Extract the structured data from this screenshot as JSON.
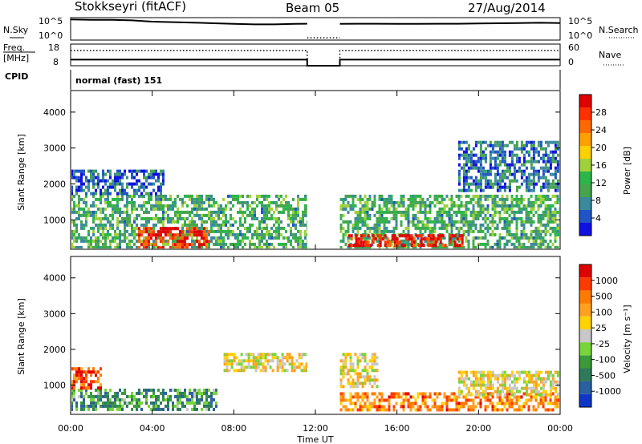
{
  "header": {
    "station": "Stokkseyri (fitACF)",
    "beam": "Beam 05",
    "date": "27/Aug/2014",
    "mode": "normal (fast) 151"
  },
  "left_labels": {
    "nsky": "N.Sky",
    "freq": "Freq.",
    "freq_unit": "[MHz]",
    "cpid": "CPID"
  },
  "right_labels": {
    "nsearch": "N.Search",
    "nave": "Nave"
  },
  "chart_data": [
    {
      "id": "noise",
      "type": "line",
      "left_axis": {
        "label": "N.Sky",
        "tick_labels": [
          "10^5",
          "10^0"
        ]
      },
      "right_axis": {
        "label": "N.Search",
        "tick_labels": [
          "10^5",
          "10^0"
        ]
      },
      "x": {
        "unit": "hours UT",
        "range": [
          0,
          24
        ]
      },
      "series": [
        {
          "name": "N.Sky",
          "style": "solid",
          "points": [
            [
              0,
              0.92
            ],
            [
              1,
              0.9
            ],
            [
              2,
              0.9
            ],
            [
              3,
              0.88
            ],
            [
              4,
              0.82
            ],
            [
              5,
              0.8
            ],
            [
              6,
              0.78
            ],
            [
              7,
              0.75
            ],
            [
              8,
              0.72
            ],
            [
              9,
              0.7
            ],
            [
              10,
              0.7
            ],
            [
              11,
              0.72
            ],
            [
              11.6,
              0.73
            ]
          ]
        },
        {
          "name": "N.Sky",
          "style": "solid",
          "points": [
            [
              13.2,
              0.72
            ],
            [
              14,
              0.73
            ],
            [
              15,
              0.73
            ],
            [
              16,
              0.72
            ],
            [
              17,
              0.72
            ],
            [
              18,
              0.73
            ],
            [
              19,
              0.73
            ],
            [
              20,
              0.74
            ],
            [
              21,
              0.75
            ],
            [
              22,
              0.76
            ],
            [
              23,
              0.77
            ],
            [
              24,
              0.76
            ]
          ]
        },
        {
          "name": "N.Search",
          "style": "dotted",
          "points": [
            [
              11.6,
              0.1
            ],
            [
              13.2,
              0.1
            ]
          ]
        }
      ]
    },
    {
      "id": "freq_nave",
      "type": "line",
      "left_axis": {
        "label": "Freq. [MHz]",
        "ticks": [
          8,
          18
        ],
        "range": [
          8,
          18
        ]
      },
      "right_axis": {
        "label": "Nave",
        "ticks": [
          0,
          60
        ],
        "range": [
          0,
          60
        ]
      },
      "x": {
        "unit": "hours UT",
        "range": [
          0,
          24
        ]
      },
      "series": [
        {
          "name": "Freq",
          "style": "solid",
          "points": [
            [
              0,
              10.8
            ],
            [
              11.6,
              10.8
            ],
            [
              11.6,
              8
            ],
            [
              13.2,
              8
            ],
            [
              13.2,
              10.8
            ],
            [
              24,
              10.8
            ]
          ]
        },
        {
          "name": "Nave",
          "style": "dotted",
          "points": [
            [
              0,
              42
            ],
            [
              11.6,
              42
            ],
            [
              11.6,
              0
            ],
            [
              13.2,
              0
            ],
            [
              13.2,
              42
            ],
            [
              24,
              42
            ]
          ]
        }
      ]
    },
    {
      "id": "power",
      "type": "heatmap",
      "ylabel": "Slant Range [km]",
      "yticks": [
        1000,
        2000,
        3000,
        4000
      ],
      "ylim": [
        180,
        4600
      ],
      "xlim": [
        0,
        24
      ],
      "colorbar": {
        "label": "Power [dB]",
        "ticks": [
          4,
          8,
          12,
          16,
          20,
          24,
          28
        ],
        "colors": [
          "#1010e0",
          "#1f55c6",
          "#3b8a9c",
          "#46a44d",
          "#2cb64a",
          "#9fd13b",
          "#ffd000",
          "#ffa000",
          "#ff6a00",
          "#ff3000",
          "#e00000"
        ]
      },
      "data_gap_hours": [
        11.6,
        13.2
      ],
      "regions": [
        {
          "x": [
            0,
            11.6
          ],
          "y": [
            250,
            1700
          ],
          "level": 0.35
        },
        {
          "x": [
            3.3,
            6.8
          ],
          "y": [
            250,
            800
          ],
          "level": 0.9
        },
        {
          "x": [
            0,
            4.5
          ],
          "y": [
            1700,
            2400
          ],
          "level": 0.15
        },
        {
          "x": [
            13.2,
            24
          ],
          "y": [
            250,
            1700
          ],
          "level": 0.35
        },
        {
          "x": [
            13.6,
            19.2
          ],
          "y": [
            250,
            600
          ],
          "level": 0.95
        },
        {
          "x": [
            19,
            24
          ],
          "y": [
            1800,
            3200
          ],
          "level": 0.2
        }
      ]
    },
    {
      "id": "velocity",
      "type": "heatmap",
      "ylabel": "Slant Range [km]",
      "yticks": [
        1000,
        2000,
        3000,
        4000
      ],
      "ylim": [
        180,
        4600
      ],
      "xlim": [
        0,
        24
      ],
      "xlabel": "Time UT",
      "xticks": [
        "00:00",
        "04:00",
        "08:00",
        "12:00",
        "16:00",
        "20:00",
        "00:00"
      ],
      "colorbar": {
        "label": "Velocity [m s⁻¹]",
        "ticks": [
          1000,
          500,
          100,
          25,
          -25,
          -100,
          -500,
          -1000
        ],
        "colors": [
          "#1036c8",
          "#2a5fa0",
          "#2e7a5a",
          "#3a9a3a",
          "#77d43a",
          "#c8c8c8",
          "#ffd200",
          "#ffa020",
          "#ff7a00",
          "#ff3a00",
          "#e00000"
        ]
      },
      "data_gap_hours": [
        11.6,
        13.2
      ],
      "regions": [
        {
          "x": [
            0,
            7.2
          ],
          "y": [
            300,
            900
          ],
          "level": 0.3
        },
        {
          "x": [
            0,
            1.5
          ],
          "y": [
            900,
            1500
          ],
          "level": 0.85
        },
        {
          "x": [
            7.5,
            11.6
          ],
          "y": [
            1400,
            1900
          ],
          "level": 0.55
        },
        {
          "x": [
            13.2,
            24
          ],
          "y": [
            300,
            800
          ],
          "level": 0.75
        },
        {
          "x": [
            13.2,
            15
          ],
          "y": [
            1000,
            1900
          ],
          "level": 0.55
        },
        {
          "x": [
            19,
            24
          ],
          "y": [
            700,
            1400
          ],
          "level": 0.55
        }
      ]
    }
  ]
}
